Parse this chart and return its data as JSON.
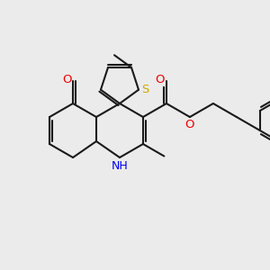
{
  "background_color": "#ebebeb",
  "bond_color": "#1a1a1a",
  "atom_colors": {
    "N": "#0000ee",
    "O": "#ee0000",
    "S": "#ccaa00"
  },
  "figsize": [
    3.0,
    3.0
  ],
  "dpi": 100
}
